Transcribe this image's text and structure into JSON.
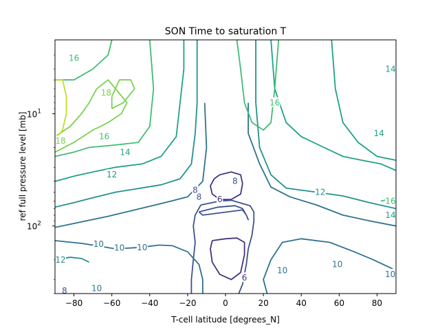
{
  "chart_data": {
    "type": "contour",
    "title": "SON Time to saturation T",
    "xlabel": "T-cell latitude [degrees_N]",
    "ylabel": "ref full pressure level [mb]",
    "xlim": [
      -90,
      90
    ],
    "ylim": [
      400,
      2.2
    ],
    "y_scale": "log",
    "y_inverted": true,
    "grid": false,
    "x_ticks": [
      -80,
      -60,
      -40,
      -20,
      0,
      20,
      40,
      60,
      80
    ],
    "x_tick_labels": [
      "−80",
      "−60",
      "−40",
      "−20",
      "0",
      "20",
      "40",
      "60",
      "80"
    ],
    "y_ticks": [
      {
        "value": 10,
        "base": "10",
        "exp": "1"
      },
      {
        "value": 100,
        "base": "10",
        "exp": "2"
      }
    ],
    "level_colors": {
      "6": "#46327e",
      "8": "#3b528b",
      "10": "#2c728e",
      "12": "#21918c",
      "14": "#1fa187",
      "16": "#3fbc73",
      "18": "#7ad151",
      "20": "#bddf26"
    },
    "contours": [
      {
        "level": 6,
        "points": [
          [
            -3,
            35
          ],
          [
            3,
            33
          ],
          [
            8,
            35
          ],
          [
            9,
            42
          ],
          [
            8,
            52
          ],
          [
            3,
            58
          ],
          [
            -3,
            58
          ],
          [
            -7,
            52
          ],
          [
            -8,
            44
          ],
          [
            -6,
            38
          ],
          [
            -3,
            35
          ]
        ]
      },
      {
        "level": 6,
        "points": [
          [
            -7,
            135
          ],
          [
            0,
            130
          ],
          [
            6,
            128
          ],
          [
            10,
            140
          ],
          [
            10,
            180
          ],
          [
            8,
            260
          ],
          [
            3,
            300
          ],
          [
            -3,
            270
          ],
          [
            -7,
            210
          ],
          [
            -8,
            160
          ],
          [
            -7,
            135
          ]
        ]
      },
      {
        "level": 8,
        "points": [
          [
            -14,
            75
          ],
          [
            -4,
            68
          ],
          [
            5,
            66
          ],
          [
            9,
            70
          ],
          [
            11,
            80
          ],
          [
            12,
            88
          ],
          [
            11,
            80
          ],
          [
            9,
            72
          ],
          [
            -12,
            80
          ],
          [
            -14,
            75
          ]
        ]
      },
      {
        "level": 8,
        "points": [
          [
            -13,
            65
          ],
          [
            -3,
            60
          ],
          [
            3,
            59
          ],
          [
            13,
            66
          ],
          [
            15,
            75
          ],
          [
            15,
            90
          ],
          [
            14,
            120
          ],
          [
            12,
            160
          ],
          [
            11,
            220
          ],
          [
            9,
            330
          ],
          [
            7,
            400
          ]
        ]
      },
      {
        "level": 8,
        "points": [
          [
            -18,
            400
          ],
          [
            -18,
            300
          ],
          [
            -17,
            200
          ],
          [
            -16,
            140
          ],
          [
            -17,
            100
          ],
          [
            -16,
            80
          ],
          [
            -13,
            65
          ]
        ]
      },
      {
        "level": 10,
        "points": [
          [
            -12,
            400
          ],
          [
            -12,
            300
          ],
          [
            -14,
            220
          ],
          [
            -20,
            170
          ],
          [
            -28,
            150
          ],
          [
            -35,
            148
          ],
          [
            -45,
            155
          ],
          [
            -58,
            160
          ],
          [
            -68,
            150
          ],
          [
            -76,
            143
          ],
          [
            -90,
            135
          ]
        ]
      },
      {
        "level": 10,
        "points": [
          [
            -11,
            8
          ],
          [
            -10,
            20
          ],
          [
            -12,
            40
          ],
          [
            -20,
            55
          ],
          [
            -32,
            62
          ],
          [
            -48,
            72
          ],
          [
            -62,
            82
          ],
          [
            -80,
            95
          ],
          [
            -90,
            103
          ]
        ]
      },
      {
        "level": 10,
        "points": [
          [
            12,
            8
          ],
          [
            12,
            15
          ],
          [
            18,
            28
          ],
          [
            24,
            45
          ],
          [
            34,
            55
          ],
          [
            48,
            65
          ],
          [
            62,
            80
          ],
          [
            76,
            90
          ],
          [
            90,
            100
          ]
        ]
      },
      {
        "level": 10,
        "points": [
          [
            22,
            400
          ],
          [
            20,
            300
          ],
          [
            24,
            200
          ],
          [
            30,
            140
          ],
          [
            40,
            130
          ],
          [
            55,
            140
          ],
          [
            68,
            170
          ],
          [
            78,
            200
          ],
          [
            88,
            240
          ],
          [
            90,
            260
          ]
        ]
      },
      {
        "level": 12,
        "points": [
          [
            -90,
            68
          ],
          [
            -80,
            62
          ],
          [
            -70,
            56
          ],
          [
            -58,
            50
          ],
          [
            -48,
            47
          ],
          [
            -34,
            43
          ],
          [
            -24,
            38
          ],
          [
            -18,
            28
          ],
          [
            -16,
            15
          ],
          [
            -15,
            8
          ],
          [
            -15,
            2.2
          ]
        ]
      },
      {
        "level": 12,
        "points": [
          [
            16,
            2.2
          ],
          [
            16,
            8
          ],
          [
            18,
            20
          ],
          [
            24,
            35
          ],
          [
            32,
            46
          ],
          [
            48,
            50
          ],
          [
            62,
            54
          ],
          [
            76,
            62
          ],
          [
            90,
            70
          ]
        ]
      },
      {
        "level": 12,
        "points": [
          [
            -90,
            200
          ],
          [
            -82,
            190
          ],
          [
            -76,
            195
          ],
          [
            -72,
            210
          ]
        ]
      },
      {
        "level": 14,
        "points": [
          [
            -90,
            40
          ],
          [
            -80,
            36
          ],
          [
            -70,
            33
          ],
          [
            -58,
            30
          ],
          [
            -44,
            28
          ],
          [
            -34,
            24
          ],
          [
            -26,
            16
          ],
          [
            -24,
            8
          ],
          [
            -22,
            4
          ],
          [
            -22,
            2.2
          ]
        ]
      },
      {
        "level": 14,
        "points": [
          [
            24,
            2.2
          ],
          [
            26,
            6
          ],
          [
            32,
            12
          ],
          [
            40,
            16
          ],
          [
            52,
            20
          ],
          [
            62,
            24
          ],
          [
            72,
            26
          ],
          [
            82,
            28
          ],
          [
            90,
            32
          ]
        ]
      },
      {
        "level": 14,
        "points": [
          [
            56,
            2.2
          ],
          [
            58,
            6
          ],
          [
            62,
            12
          ],
          [
            70,
            18
          ],
          [
            80,
            24
          ],
          [
            90,
            26
          ]
        ]
      },
      {
        "level": 16,
        "points": [
          [
            -90,
            24
          ],
          [
            -80,
            22
          ],
          [
            -72,
            20
          ],
          [
            -58,
            19
          ],
          [
            -46,
            18
          ],
          [
            -40,
            13
          ],
          [
            -38,
            6
          ],
          [
            -40,
            2.2
          ]
        ]
      },
      {
        "level": 16,
        "points": [
          [
            -60,
            2.2
          ],
          [
            -62,
            3
          ],
          [
            -70,
            4
          ],
          [
            -80,
            5
          ],
          [
            -90,
            5
          ]
        ]
      },
      {
        "level": 16,
        "points": [
          [
            6,
            2.2
          ],
          [
            8,
            4
          ],
          [
            10,
            8
          ],
          [
            14,
            12
          ],
          [
            20,
            14
          ],
          [
            24,
            12
          ],
          [
            26,
            6
          ],
          [
            28,
            2.2
          ]
        ]
      },
      {
        "level": 16,
        "points": [
          [
            82,
            60
          ],
          [
            86,
            58
          ],
          [
            90,
            56
          ]
        ]
      },
      {
        "level": 18,
        "points": [
          [
            -90,
            22
          ],
          [
            -80,
            18
          ],
          [
            -70,
            14
          ],
          [
            -62,
            12
          ],
          [
            -55,
            10
          ],
          [
            -52,
            8
          ],
          [
            -58,
            6
          ],
          [
            -62,
            5
          ],
          [
            -68,
            6
          ],
          [
            -72,
            8
          ],
          [
            -76,
            10
          ],
          [
            -82,
            13
          ],
          [
            -90,
            16
          ]
        ]
      },
      {
        "level": 18,
        "points": [
          [
            -60,
            9
          ],
          [
            -54,
            8
          ],
          [
            -48,
            6
          ],
          [
            -50,
            5
          ],
          [
            -56,
            5
          ],
          [
            -60,
            7
          ],
          [
            -60,
            9
          ]
        ]
      },
      {
        "level": 20,
        "points": [
          [
            -90,
            17
          ],
          [
            -86,
            14
          ],
          [
            -84,
            10
          ],
          [
            -84,
            7
          ],
          [
            -86,
            5
          ],
          [
            -90,
            5
          ]
        ]
      }
    ],
    "labels": [
      {
        "text": "6",
        "x": -3,
        "y": 58
      },
      {
        "text": "6",
        "x": 10,
        "y": 290
      },
      {
        "text": "8",
        "x": -14,
        "y": 55
      },
      {
        "text": "8",
        "x": 5,
        "y": 40
      },
      {
        "text": "8",
        "x": -16,
        "y": 48
      },
      {
        "text": "8",
        "x": -85,
        "y": 380
      },
      {
        "text": "10",
        "x": -67,
        "y": 145
      },
      {
        "text": "10",
        "x": -56,
        "y": 157
      },
      {
        "text": "10",
        "x": -44,
        "y": 155
      },
      {
        "text": "10",
        "x": -68,
        "y": 360
      },
      {
        "text": "10",
        "x": 30,
        "y": 250
      },
      {
        "text": "10",
        "x": 59,
        "y": 220
      },
      {
        "text": "10",
        "x": 87,
        "y": 270
      },
      {
        "text": "12",
        "x": -60,
        "y": 35
      },
      {
        "text": "12",
        "x": 50,
        "y": 50
      },
      {
        "text": "12",
        "x": -90,
        "y": 200
      },
      {
        "text": "14",
        "x": -53,
        "y": 22
      },
      {
        "text": "14",
        "x": 90,
        "y": 80
      },
      {
        "text": "14",
        "x": 81,
        "y": 15
      },
      {
        "text": "14",
        "x": 88,
        "y": 4
      },
      {
        "text": "16",
        "x": -64,
        "y": 16
      },
      {
        "text": "16",
        "x": 26,
        "y": 8
      },
      {
        "text": "16",
        "x": -80,
        "y": 3.2
      },
      {
        "text": "16",
        "x": 90,
        "y": 60
      },
      {
        "text": "18",
        "x": -63,
        "y": 6.5
      },
      {
        "text": "18",
        "x": -88,
        "y": 17.5
      }
    ]
  }
}
